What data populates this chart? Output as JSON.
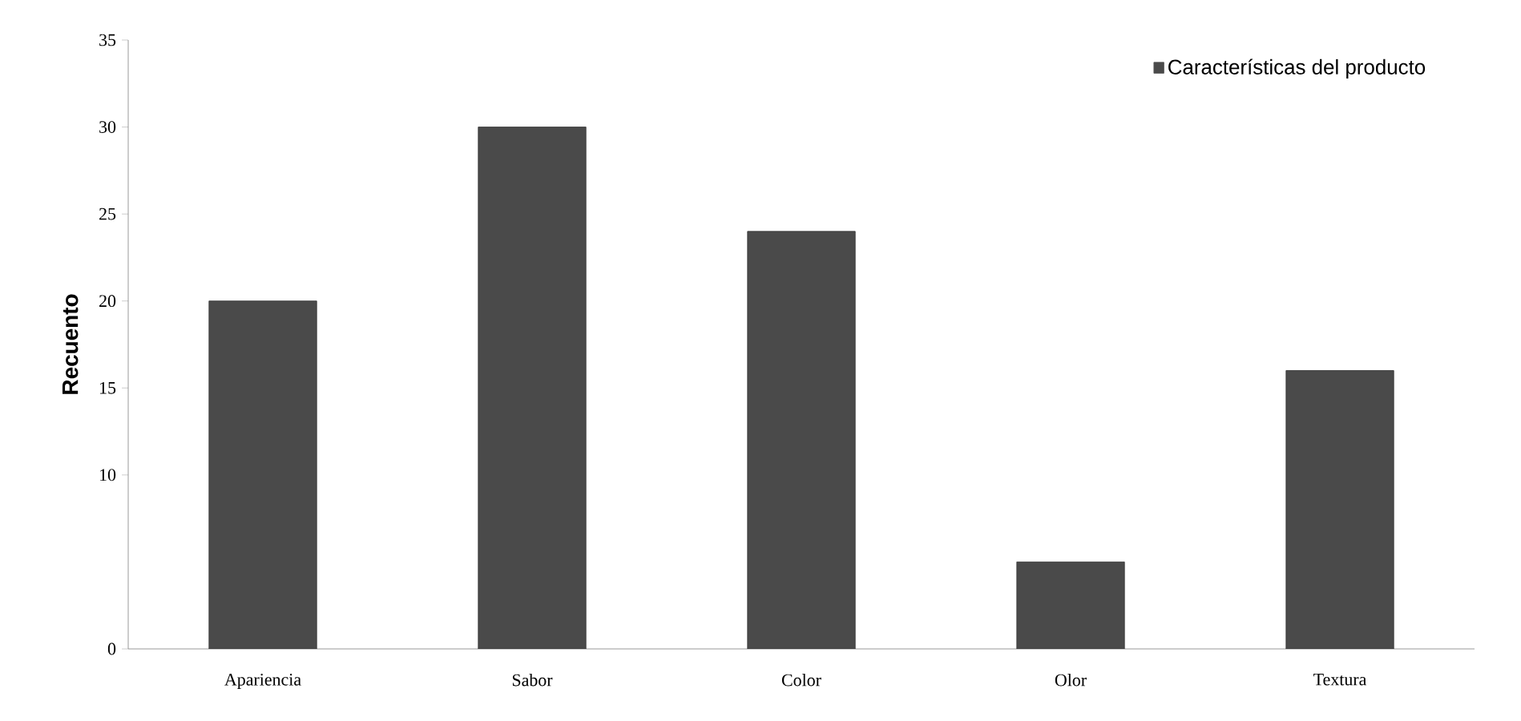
{
  "chart_data": {
    "type": "bar",
    "ylabel": "Recuento",
    "categories": [
      "Apariencia",
      "Sabor",
      "Color",
      "Olor",
      "Textura"
    ],
    "series": [
      {
        "name": "Características del producto",
        "color": "#4a4a4a",
        "values": [
          20,
          30,
          24,
          5,
          16
        ]
      }
    ],
    "ylim": [
      0,
      35
    ],
    "yticks": [
      0,
      10,
      15,
      20,
      25,
      30,
      35
    ],
    "grid": false,
    "legend": "top right"
  }
}
